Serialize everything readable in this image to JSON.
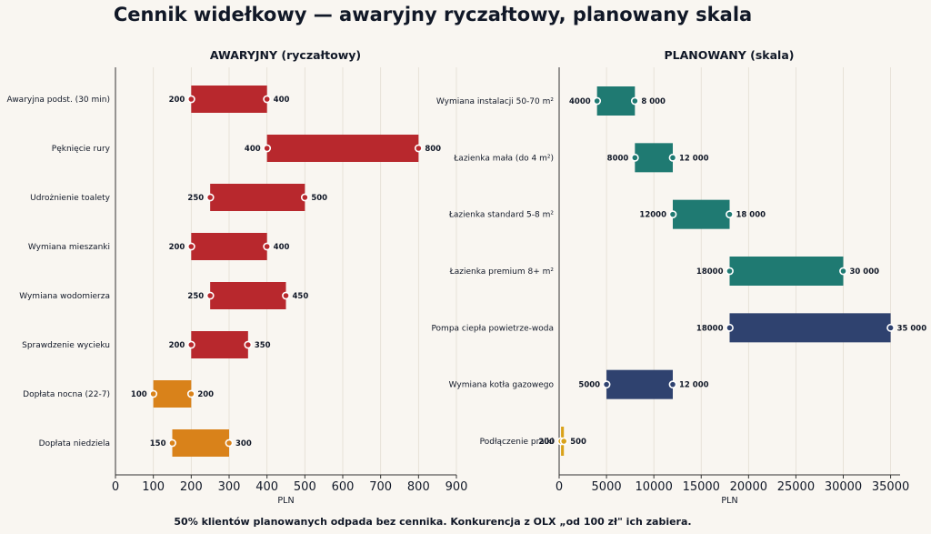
{
  "title": "Cennik widełkowy — awaryjny ryczałtowy, planowany skala",
  "footer": "50% klientów planowanych odpada bez cennika. Konkurencja z OLX „od 100 zł\" ich zabiera.",
  "chart_data": [
    {
      "type": "range-bar",
      "title": "AWARYJNY (ryczałtowy)",
      "xlabel": "PLN",
      "xlim": [
        0,
        900
      ],
      "xticks": [
        0,
        100,
        200,
        300,
        400,
        500,
        600,
        700,
        800,
        900
      ],
      "grid": true,
      "categories": [
        "Awaryjna podst. (30 min)",
        "Pęknięcie rury",
        "Udrożnienie toalety",
        "Wymiana mieszanki",
        "Wymiana wodomierza",
        "Sprawdzenie wycieku",
        "Dopłata nocna (22-7)",
        "Dopłata niedziela"
      ],
      "min": [
        200,
        400,
        250,
        200,
        250,
        200,
        100,
        150
      ],
      "max": [
        400,
        800,
        500,
        400,
        450,
        350,
        200,
        300
      ],
      "min_labels": [
        "200",
        "400",
        "250",
        "200",
        "250",
        "200",
        "100",
        "150"
      ],
      "max_labels": [
        "400",
        "800",
        "500",
        "400",
        "450",
        "350",
        "200",
        "300"
      ],
      "colors": [
        "#b8282d",
        "#b8282d",
        "#b8282d",
        "#b8282d",
        "#b8282d",
        "#b8282d",
        "#d9821a",
        "#d9821a"
      ]
    },
    {
      "type": "range-bar",
      "title": "PLANOWANY (skala)",
      "xlabel": "PLN",
      "xlim": [
        0,
        36000
      ],
      "xticks": [
        0,
        5000,
        10000,
        15000,
        20000,
        25000,
        30000,
        35000
      ],
      "grid": true,
      "categories": [
        "Wymiana instalacji 50-70 m²",
        "Łazienka mała (do 4 m²)",
        "Łazienka standard 5-8 m²",
        "Łazienka premium 8+ m²",
        "Pompa ciepła powietrze-woda",
        "Wymiana kotła gazowego",
        "Podłączenie pralki"
      ],
      "min": [
        4000,
        8000,
        12000,
        18000,
        18000,
        5000,
        200
      ],
      "max": [
        8000,
        12000,
        18000,
        30000,
        35000,
        12000,
        500
      ],
      "min_labels": [
        "4000",
        "8000",
        "12000",
        "18000",
        "18000",
        "5000",
        "200"
      ],
      "max_labels": [
        "8 000",
        "12 000",
        "18 000",
        "30 000",
        "35 000",
        "12 000",
        "500"
      ],
      "colors": [
        "#1f7a72",
        "#1f7a72",
        "#1f7a72",
        "#1f7a72",
        "#2f426f",
        "#2f426f",
        "#d9a21a"
      ]
    }
  ]
}
